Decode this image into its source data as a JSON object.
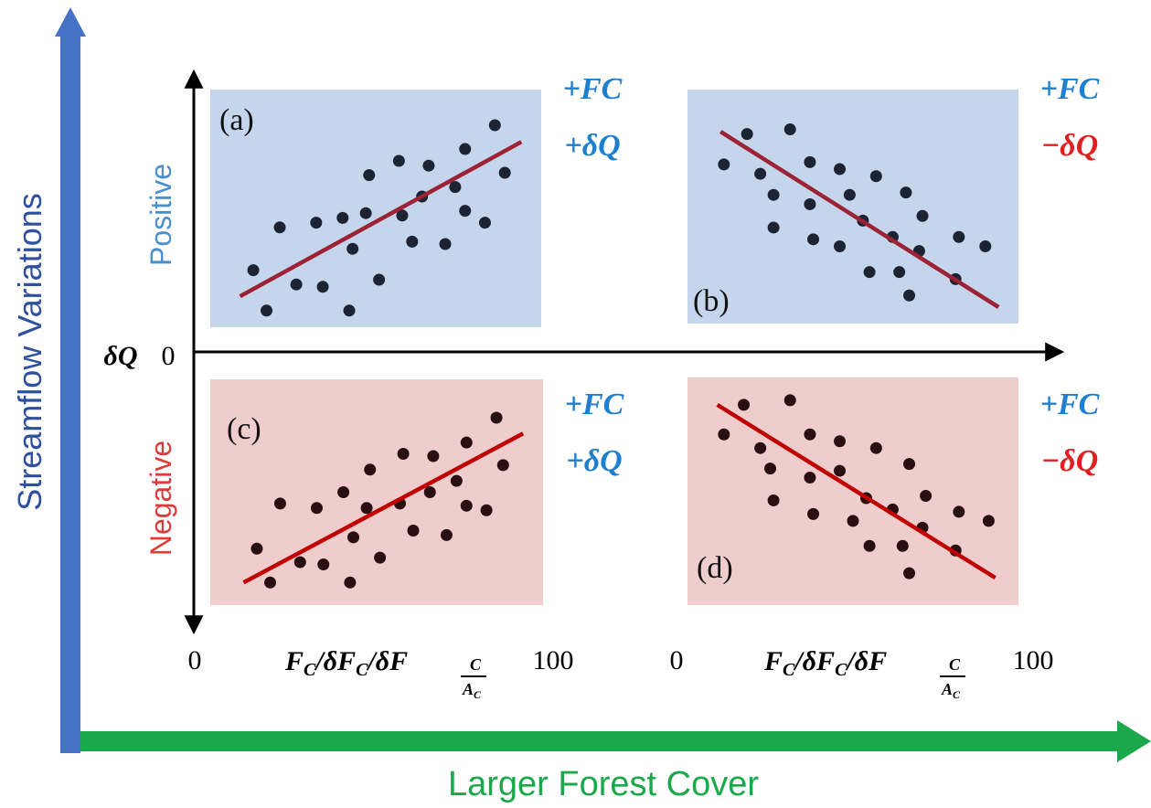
{
  "outer_axes": {
    "y_label": "Streamflow Variations",
    "x_label": "Larger Forest Cover",
    "y_color": "#4472c4",
    "x_color": "#1aa84a"
  },
  "rows": {
    "positive_label": "Positive",
    "negative_label": "Negative",
    "positive_color": "#4a90d0",
    "negative_color": "#e03a3a"
  },
  "center_axis": {
    "dq_label": "δQ",
    "zero": "0"
  },
  "x_ticks": {
    "left_start": "0",
    "left_end": "100",
    "right_start": "0",
    "right_end": "100",
    "variable_main": "F",
    "variable_sub": "C",
    "variable_mid": "/δF",
    "variable_frac_num": "C",
    "variable_frac_den": "A",
    "variable_frac_den_sub": "C"
  },
  "colors": {
    "blue_panel": "#c5d5ec",
    "red_panel": "#f0cdcd",
    "blue_line": "#9b2335",
    "red_line": "#c00000",
    "blue_dot": "#1c2433",
    "red_dot": "#2a0f12",
    "fc_color": "#1f7fcf",
    "neg_dq_color": "#e02020",
    "pos_dq_color": "#1f7fcf"
  },
  "panels": [
    {
      "id": "a",
      "label": "(a)",
      "fc": "+FC",
      "dq": "+δQ",
      "dq_sign": "positive",
      "tone": "blue",
      "points": [
        [
          0.13,
          0.76
        ],
        [
          0.17,
          0.93
        ],
        [
          0.21,
          0.58
        ],
        [
          0.26,
          0.82
        ],
        [
          0.32,
          0.56
        ],
        [
          0.34,
          0.83
        ],
        [
          0.4,
          0.54
        ],
        [
          0.42,
          0.93
        ],
        [
          0.43,
          0.67
        ],
        [
          0.47,
          0.52
        ],
        [
          0.48,
          0.36
        ],
        [
          0.51,
          0.8
        ],
        [
          0.57,
          0.3
        ],
        [
          0.58,
          0.53
        ],
        [
          0.61,
          0.64
        ],
        [
          0.64,
          0.45
        ],
        [
          0.66,
          0.32
        ],
        [
          0.71,
          0.65
        ],
        [
          0.74,
          0.41
        ],
        [
          0.77,
          0.25
        ],
        [
          0.77,
          0.51
        ],
        [
          0.83,
          0.56
        ],
        [
          0.86,
          0.15
        ],
        [
          0.89,
          0.35
        ]
      ],
      "line": [
        [
          0.09,
          0.87
        ],
        [
          0.94,
          0.22
        ]
      ]
    },
    {
      "id": "b",
      "label": "(b)",
      "fc": "+FC",
      "dq": "−δQ",
      "dq_sign": "negative",
      "tone": "blue",
      "points": [
        [
          0.11,
          0.32
        ],
        [
          0.18,
          0.19
        ],
        [
          0.22,
          0.36
        ],
        [
          0.26,
          0.45
        ],
        [
          0.26,
          0.59
        ],
        [
          0.31,
          0.17
        ],
        [
          0.37,
          0.49
        ],
        [
          0.37,
          0.31
        ],
        [
          0.38,
          0.64
        ],
        [
          0.46,
          0.67
        ],
        [
          0.46,
          0.34
        ],
        [
          0.49,
          0.45
        ],
        [
          0.53,
          0.56
        ],
        [
          0.55,
          0.78
        ],
        [
          0.57,
          0.37
        ],
        [
          0.62,
          0.63
        ],
        [
          0.64,
          0.78
        ],
        [
          0.66,
          0.44
        ],
        [
          0.67,
          0.88
        ],
        [
          0.7,
          0.69
        ],
        [
          0.71,
          0.54
        ],
        [
          0.81,
          0.81
        ],
        [
          0.82,
          0.63
        ],
        [
          0.9,
          0.67
        ]
      ],
      "line": [
        [
          0.1,
          0.18
        ],
        [
          0.94,
          0.93
        ]
      ]
    },
    {
      "id": "c",
      "label": "(c)",
      "fc": "+FC",
      "dq": "+δQ",
      "dq_sign": "positive",
      "tone": "red",
      "points": [
        [
          0.14,
          0.75
        ],
        [
          0.18,
          0.9
        ],
        [
          0.21,
          0.55
        ],
        [
          0.27,
          0.81
        ],
        [
          0.32,
          0.57
        ],
        [
          0.34,
          0.82
        ],
        [
          0.4,
          0.5
        ],
        [
          0.42,
          0.9
        ],
        [
          0.43,
          0.7
        ],
        [
          0.47,
          0.57
        ],
        [
          0.48,
          0.4
        ],
        [
          0.51,
          0.79
        ],
        [
          0.57,
          0.55
        ],
        [
          0.58,
          0.33
        ],
        [
          0.61,
          0.67
        ],
        [
          0.66,
          0.5
        ],
        [
          0.67,
          0.34
        ],
        [
          0.71,
          0.69
        ],
        [
          0.74,
          0.45
        ],
        [
          0.77,
          0.28
        ],
        [
          0.77,
          0.56
        ],
        [
          0.83,
          0.58
        ],
        [
          0.86,
          0.17
        ],
        [
          0.88,
          0.38
        ]
      ],
      "line": [
        [
          0.1,
          0.9
        ],
        [
          0.94,
          0.24
        ]
      ]
    },
    {
      "id": "d",
      "label": "(d)",
      "fc": "+FC",
      "dq": "−δQ",
      "dq_sign": "negative",
      "tone": "red",
      "points": [
        [
          0.11,
          0.25
        ],
        [
          0.17,
          0.12
        ],
        [
          0.22,
          0.31
        ],
        [
          0.25,
          0.4
        ],
        [
          0.26,
          0.54
        ],
        [
          0.31,
          0.1
        ],
        [
          0.37,
          0.25
        ],
        [
          0.37,
          0.44
        ],
        [
          0.38,
          0.6
        ],
        [
          0.46,
          0.28
        ],
        [
          0.46,
          0.41
        ],
        [
          0.5,
          0.63
        ],
        [
          0.54,
          0.53
        ],
        [
          0.55,
          0.74
        ],
        [
          0.57,
          0.31
        ],
        [
          0.62,
          0.58
        ],
        [
          0.65,
          0.74
        ],
        [
          0.67,
          0.38
        ],
        [
          0.67,
          0.86
        ],
        [
          0.71,
          0.66
        ],
        [
          0.72,
          0.52
        ],
        [
          0.81,
          0.76
        ],
        [
          0.82,
          0.59
        ],
        [
          0.91,
          0.63
        ]
      ],
      "line": [
        [
          0.09,
          0.12
        ],
        [
          0.93,
          0.88
        ]
      ]
    }
  ]
}
